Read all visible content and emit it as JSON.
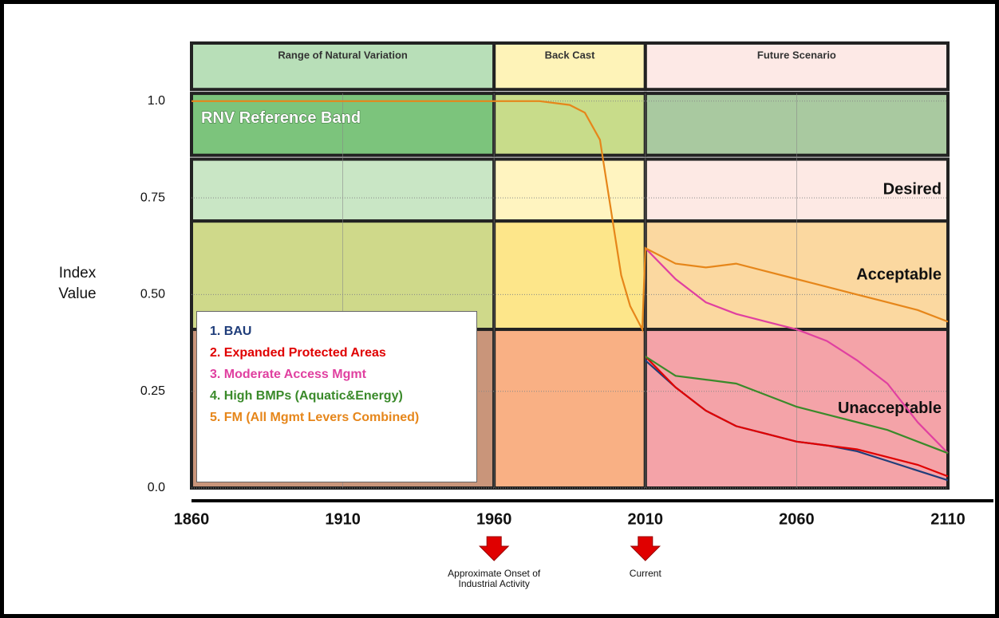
{
  "chart_data": {
    "type": "line",
    "y_label": "Index Value",
    "x": [
      1860,
      1960,
      1975,
      1985,
      1990,
      1995,
      1998,
      2002,
      2005,
      2009,
      2010,
      2020,
      2030,
      2040,
      2050,
      2060,
      2070,
      2080,
      2090,
      2100,
      2110
    ],
    "xlim": [
      1860,
      2110
    ],
    "xticks": [
      1860,
      1910,
      1960,
      2010,
      2060,
      2110
    ],
    "ylim": [
      0,
      1.15
    ],
    "yticks": [
      {
        "value": 0,
        "label": "0.0"
      },
      0.25,
      {
        "value": 0.5,
        "label": "0.50"
      },
      0.75,
      {
        "value": 1,
        "label": "1.0"
      }
    ],
    "grid": true,
    "periods": [
      {
        "name": "Range of Natural Variation",
        "range": [
          1860,
          1960
        ],
        "header_color": "#b8dfb8"
      },
      {
        "name": "Back Cast",
        "range": [
          1960,
          2010
        ],
        "header_color": "#fef3b8"
      },
      {
        "name": "Future Scenario",
        "range": [
          2010,
          2110
        ],
        "header_color": "#fde9e6"
      }
    ],
    "header_range": [
      1.03,
      1.15
    ],
    "zones": [
      {
        "name": "RNV Reference Band",
        "range": [
          0.86,
          1.02
        ],
        "colors": [
          "#7cc47c",
          "#c8dc8a",
          "#a9c9a0"
        ]
      },
      {
        "name": "Desired",
        "range": [
          0.69,
          0.85
        ],
        "colors": [
          "#c9e6c5",
          "#fff4c0",
          "#fde9e4"
        ]
      },
      {
        "name": "Acceptable",
        "range": [
          0.41,
          0.69
        ],
        "colors": [
          "#cfd98a",
          "#fde68a",
          "#fbd8a0"
        ]
      },
      {
        "name": "Unacceptable",
        "range": [
          0,
          0.41
        ],
        "colors": [
          "#c9957a",
          "#f9b084",
          "#f4a3a8"
        ]
      }
    ],
    "series": [
      {
        "name": "1. BAU",
        "color": "#1f3d7a",
        "values": [
          null,
          null,
          null,
          null,
          null,
          null,
          null,
          null,
          null,
          null,
          0.33,
          0.26,
          0.2,
          0.16,
          0.14,
          0.12,
          0.11,
          0.095,
          0.07,
          0.045,
          0.02
        ]
      },
      {
        "name": "2. Expanded Protected Areas",
        "color": "#e00000",
        "values": [
          null,
          null,
          null,
          null,
          null,
          null,
          null,
          null,
          null,
          null,
          0.34,
          0.26,
          0.2,
          0.16,
          0.14,
          0.12,
          0.11,
          0.1,
          0.08,
          0.06,
          0.03
        ]
      },
      {
        "name": "3. Moderate Access Mgmt",
        "color": "#e040a0",
        "values": [
          null,
          null,
          null,
          null,
          null,
          null,
          null,
          null,
          null,
          null,
          0.62,
          0.54,
          0.48,
          0.45,
          0.43,
          0.41,
          0.38,
          0.33,
          0.27,
          0.17,
          0.09
        ]
      },
      {
        "name": "4. High BMPs (Aquatic&Energy)",
        "color": "#3a8a2a",
        "values": [
          null,
          null,
          null,
          null,
          null,
          null,
          null,
          null,
          null,
          null,
          0.34,
          0.29,
          0.28,
          0.27,
          0.24,
          0.21,
          0.19,
          0.17,
          0.15,
          0.12,
          0.09
        ]
      },
      {
        "name": "5. FM (All Mgmt Levers Combined)",
        "color": "#e6861a",
        "values": [
          1.0,
          1.0,
          1.0,
          0.99,
          0.97,
          0.9,
          0.75,
          0.55,
          0.47,
          0.41,
          0.62,
          0.58,
          0.57,
          0.58,
          0.56,
          0.54,
          0.52,
          0.5,
          0.48,
          0.46,
          0.43
        ]
      }
    ],
    "annotations": [
      {
        "text": "Approximate Onset of Industrial Activity",
        "x": 1960
      },
      {
        "text": "Current",
        "x": 2010
      }
    ]
  }
}
